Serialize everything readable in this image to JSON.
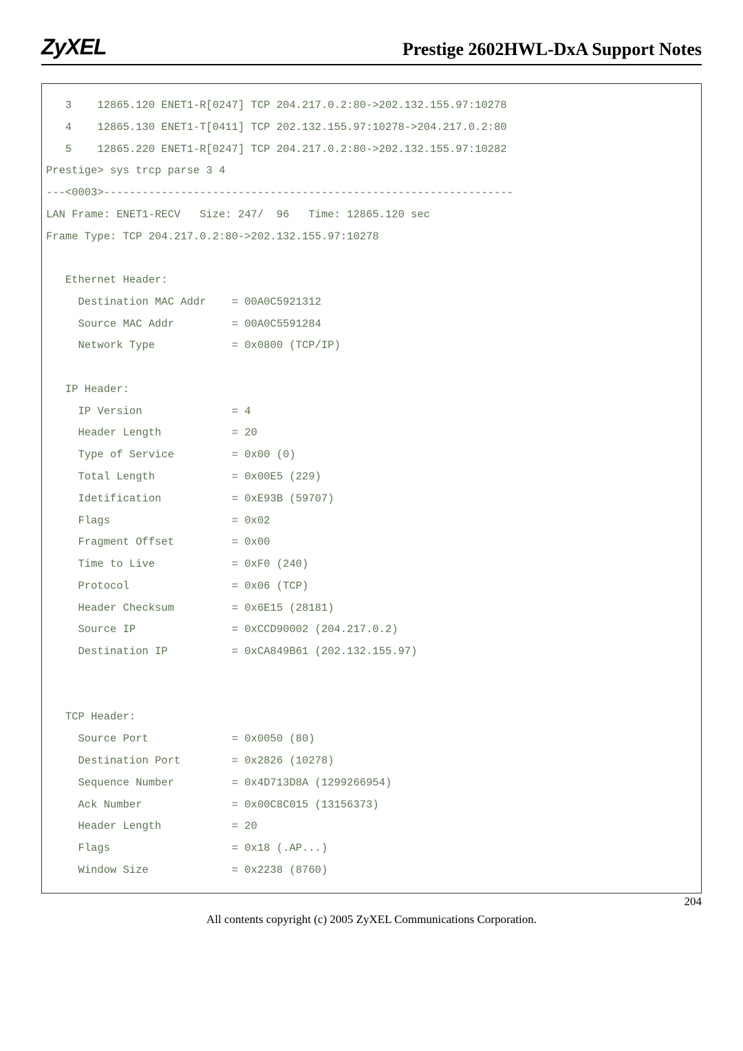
{
  "header": {
    "logo_text": "ZyXEL",
    "title": "Prestige 2602HWL-DxA Support Notes"
  },
  "terminal": {
    "text_color": "#5b7252",
    "font_family": "Courier New",
    "font_size_pt": 12,
    "border_color": "#333333",
    "lines": [
      "   3    12865.120 ENET1-R[0247] TCP 204.217.0.2:80->202.132.155.97:10278",
      "   4    12865.130 ENET1-T[0411] TCP 202.132.155.97:10278->204.217.0.2:80",
      "   5    12865.220 ENET1-R[0247] TCP 204.217.0.2:80->202.132.155.97:10282",
      "Prestige> sys trcp parse 3 4",
      "---<0003>----------------------------------------------------------------",
      "LAN Frame: ENET1-RECV   Size: 247/  96   Time: 12865.120 sec",
      "Frame Type: TCP 204.217.0.2:80->202.132.155.97:10278",
      "",
      "   Ethernet Header:",
      "     Destination MAC Addr    = 00A0C5921312",
      "     Source MAC Addr         = 00A0C5591284",
      "     Network Type            = 0x0800 (TCP/IP)",
      "",
      "   IP Header:",
      "     IP Version              = 4",
      "     Header Length           = 20",
      "     Type of Service         = 0x00 (0)",
      "     Total Length            = 0x00E5 (229)",
      "     Idetification           = 0xE93B (59707)",
      "     Flags                   = 0x02",
      "     Fragment Offset         = 0x00",
      "     Time to Live            = 0xF0 (240)",
      "     Protocol                = 0x06 (TCP)",
      "     Header Checksum         = 0x6E15 (28181)",
      "     Source IP               = 0xCCD90002 (204.217.0.2)",
      "     Destination IP          = 0xCA849B61 (202.132.155.97)",
      "",
      "",
      "   TCP Header:",
      "     Source Port             = 0x0050 (80)",
      "     Destination Port        = 0x2826 (10278)",
      "     Sequence Number         = 0x4D713D8A (1299266954)",
      "     Ack Number              = 0x00C8C015 (13156373)",
      "     Header Length           = 20",
      "     Flags                   = 0x18 (.AP...)",
      "     Window Size             = 0x2238 (8760)",
      ""
    ]
  },
  "footer": {
    "copyright": "All contents copyright (c) 2005 ZyXEL Communications Corporation.",
    "page_number": "204"
  }
}
